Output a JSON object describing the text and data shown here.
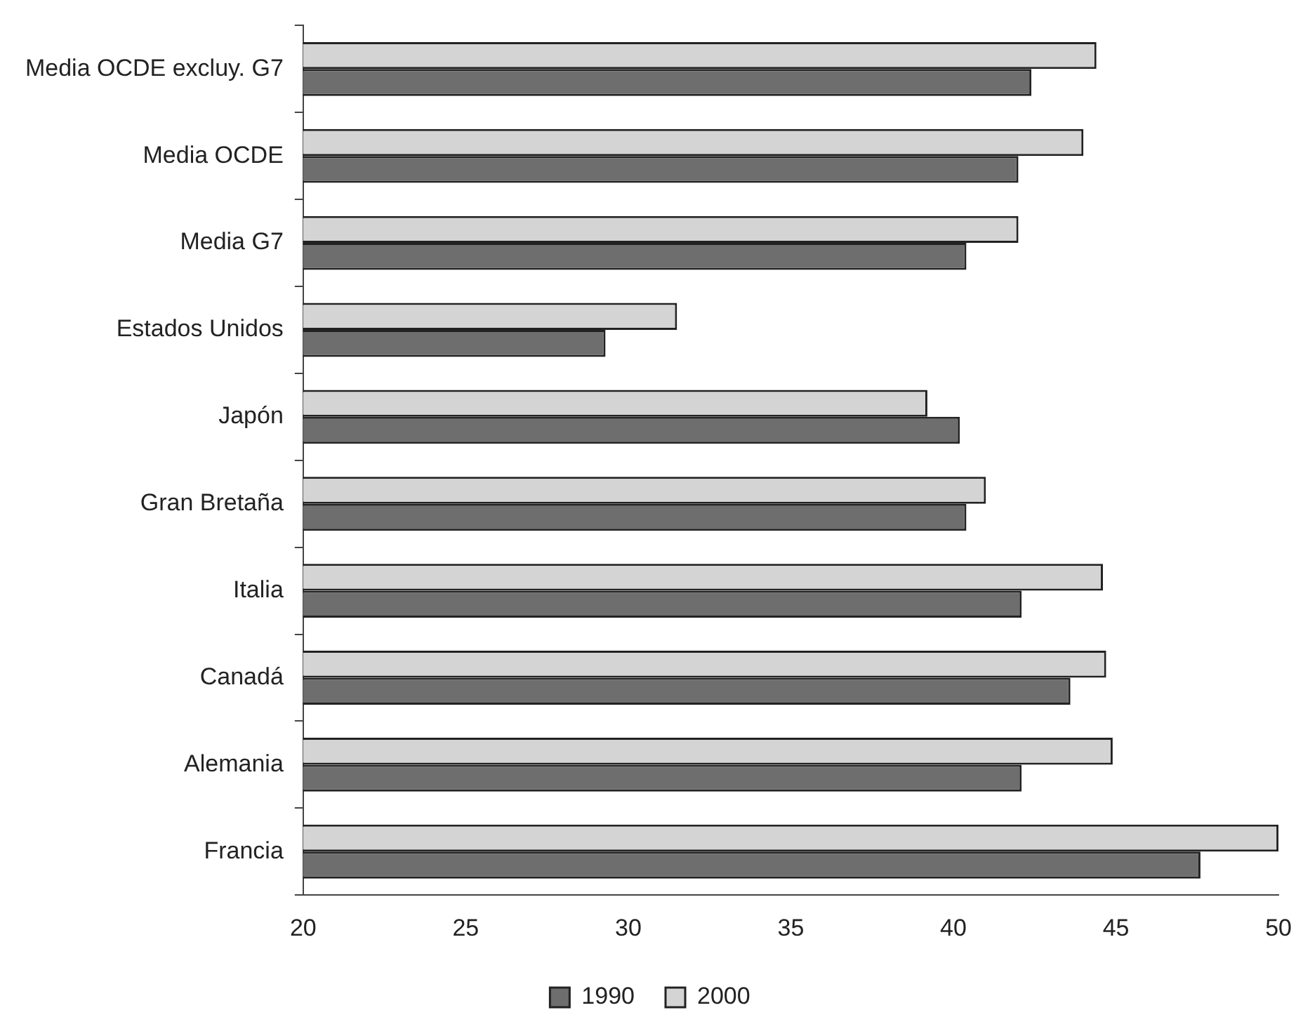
{
  "chart_data": {
    "type": "bar",
    "orientation": "horizontal",
    "categories": [
      "Media OCDE excluy. G7",
      "Media OCDE",
      "Media G7",
      "Estados Unidos",
      "Japón",
      "Gran Bretaña",
      "Italia",
      "Canadá",
      "Alemania",
      "Francia"
    ],
    "series": [
      {
        "name": "2000",
        "color": "#d4d4d4",
        "values": [
          44.4,
          44.0,
          42.0,
          31.5,
          39.2,
          41.0,
          44.6,
          44.7,
          44.9,
          50.0
        ]
      },
      {
        "name": "1990",
        "color": "#6e6e6e",
        "values": [
          42.4,
          42.0,
          40.4,
          29.3,
          40.2,
          40.4,
          42.1,
          43.6,
          42.1,
          47.6
        ]
      }
    ],
    "xlim": [
      20,
      50
    ],
    "xticks": [
      20,
      25,
      30,
      35,
      40,
      45,
      50
    ],
    "grid": false,
    "legend": "bottom"
  }
}
